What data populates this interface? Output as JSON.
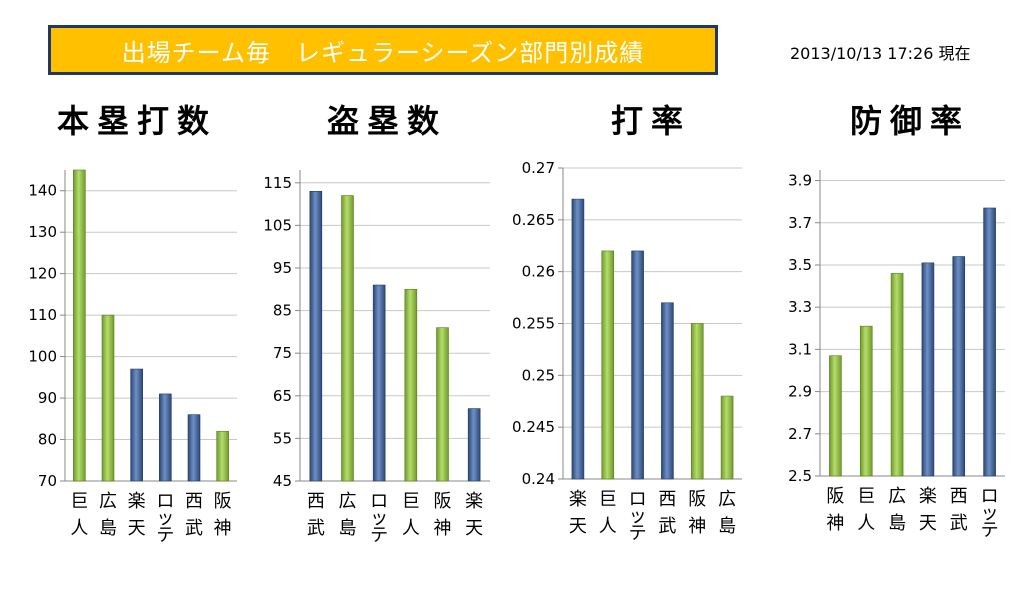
{
  "header": {
    "title": "出場チーム毎　レギュラーシーズン部門別成績",
    "timestamp": "2013/10/13  17:26  現在"
  },
  "colors": {
    "green": "#8ab83c",
    "blue": "#3e5f95",
    "banner": "#ffc000",
    "banner_border": "#1f3864"
  },
  "chart_data": [
    {
      "type": "bar",
      "title": "本塁打数",
      "categories": [
        "巨人",
        "広島",
        "楽天",
        "ロッテ",
        "西武",
        "阪神"
      ],
      "values": [
        145,
        110,
        97,
        91,
        86,
        82
      ],
      "colors": [
        "green",
        "green",
        "blue",
        "blue",
        "blue",
        "green"
      ],
      "ylim": [
        70,
        145
      ],
      "yticks": [
        70,
        80,
        90,
        100,
        110,
        120,
        130,
        140
      ],
      "tick_labels": [
        "70",
        "80",
        "90",
        "100",
        "110",
        "120",
        "130",
        "140"
      ]
    },
    {
      "type": "bar",
      "title": "盗塁数",
      "categories": [
        "西武",
        "広島",
        "ロッテ",
        "巨人",
        "阪神",
        "楽天"
      ],
      "values": [
        113,
        112,
        91,
        90,
        81,
        62
      ],
      "colors": [
        "blue",
        "green",
        "blue",
        "green",
        "green",
        "blue"
      ],
      "ylim": [
        45,
        118
      ],
      "yticks": [
        45,
        55,
        65,
        75,
        85,
        95,
        105,
        115
      ],
      "tick_labels": [
        "45",
        "55",
        "65",
        "75",
        "85",
        "95",
        "105",
        "115"
      ]
    },
    {
      "type": "bar",
      "title": "打率",
      "categories": [
        "楽天",
        "巨人",
        "ロッテ",
        "西武",
        "阪神",
        "広島"
      ],
      "values": [
        0.267,
        0.262,
        0.262,
        0.257,
        0.255,
        0.248
      ],
      "colors": [
        "blue",
        "green",
        "blue",
        "blue",
        "green",
        "green"
      ],
      "ylim": [
        0.24,
        0.27
      ],
      "yticks": [
        0.24,
        0.245,
        0.25,
        0.255,
        0.26,
        0.265,
        0.27
      ],
      "tick_labels": [
        "0.24",
        "0.245",
        "0.25",
        "0.255",
        "0.26",
        "0.265",
        "0.27"
      ]
    },
    {
      "type": "bar",
      "title": "防御率",
      "categories": [
        "阪神",
        "巨人",
        "広島",
        "楽天",
        "西武",
        "ロッテ"
      ],
      "values": [
        3.07,
        3.21,
        3.46,
        3.51,
        3.54,
        3.77
      ],
      "colors": [
        "green",
        "green",
        "green",
        "blue",
        "blue",
        "blue"
      ],
      "ylim": [
        2.5,
        3.95
      ],
      "yticks": [
        2.5,
        2.7,
        2.9,
        3.1,
        3.3,
        3.5,
        3.7,
        3.9
      ],
      "tick_labels": [
        "2.5",
        "2.7",
        "2.9",
        "3.1",
        "3.3",
        "3.5",
        "3.7",
        "3.9"
      ]
    }
  ]
}
